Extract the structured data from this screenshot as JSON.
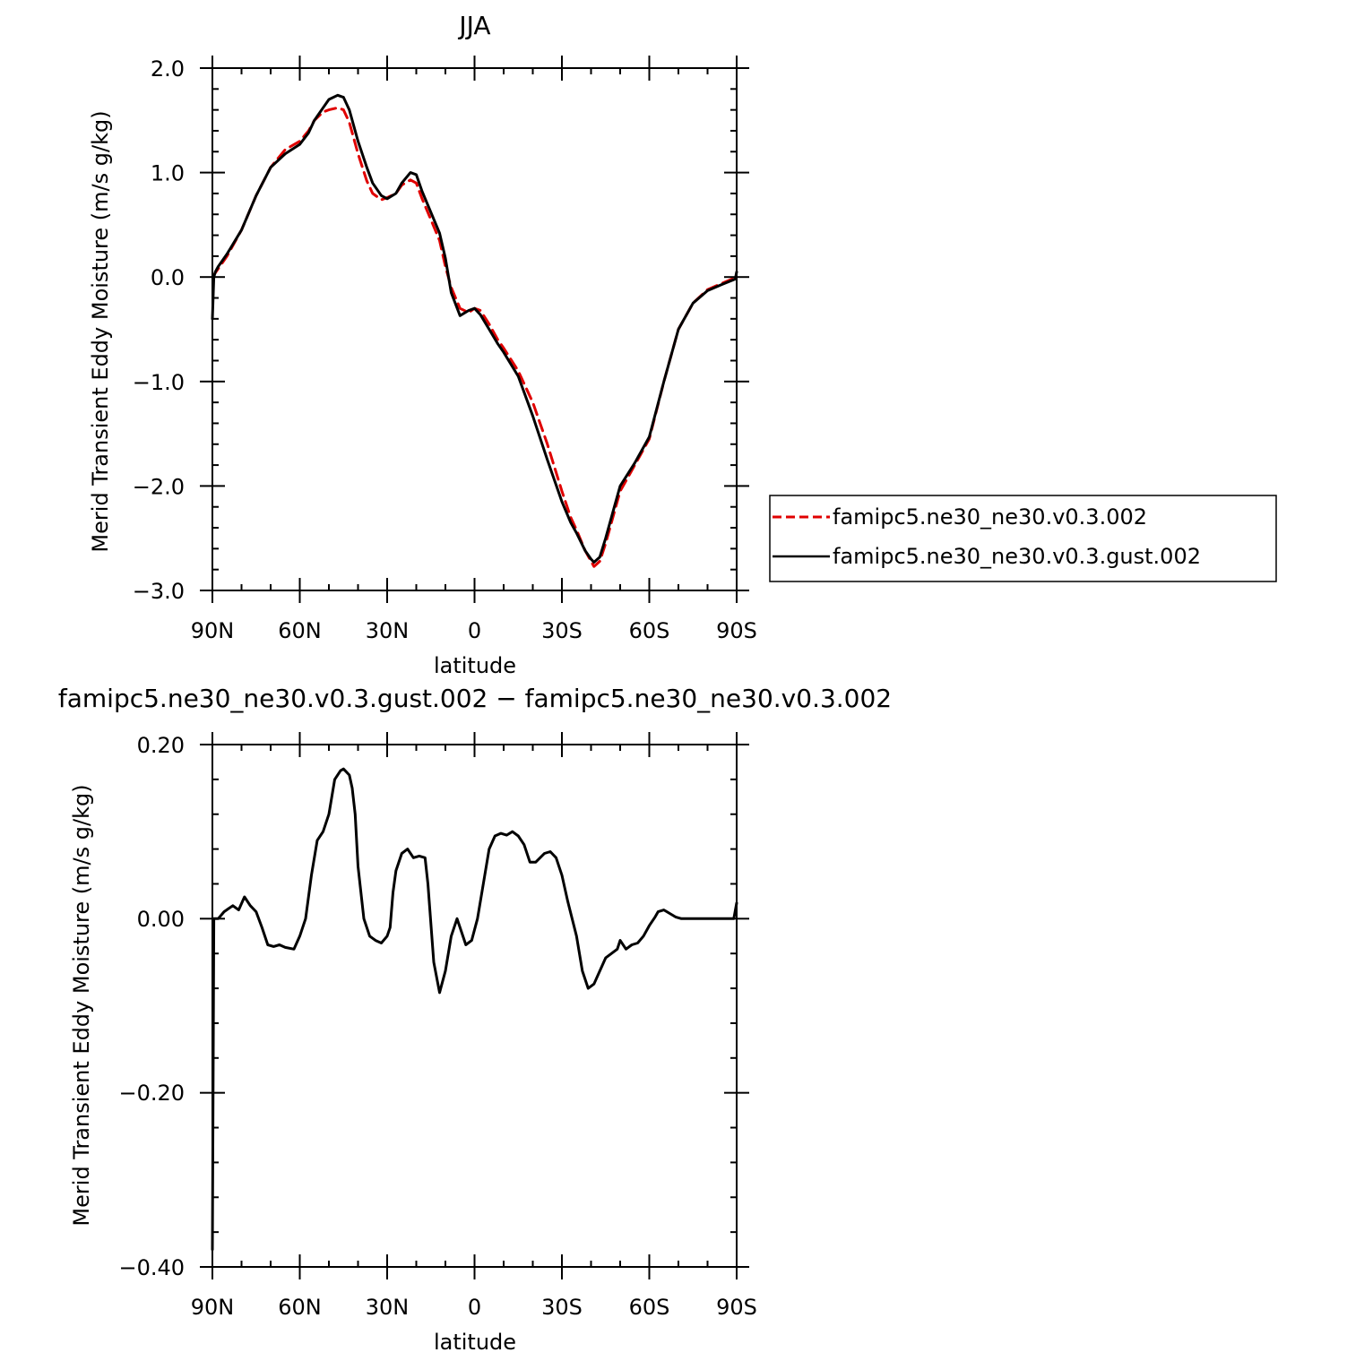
{
  "chart_data": [
    {
      "type": "line",
      "title": "JJA",
      "xlabel": "latitude",
      "ylabel": "Merid Transient Eddy Moisture (m/s g/kg)",
      "xlim": [
        90,
        -90
      ],
      "ylim": [
        -3.0,
        2.0
      ],
      "x_ticks": [
        90,
        60,
        30,
        0,
        -30,
        -60,
        -90
      ],
      "x_tick_labels": [
        "90N",
        "60N",
        "30N",
        "0",
        "30S",
        "60S",
        "90S"
      ],
      "y_ticks": [
        2.0,
        1.0,
        0.0,
        -1.0,
        -2.0,
        -3.0
      ],
      "y_tick_labels": [
        "2.0",
        "1.0",
        "0.0",
        "−1.0",
        "−2.0",
        "−3.0"
      ],
      "grid": false,
      "legend_position": "right",
      "series": [
        {
          "name": "famipc5.ne30_ne30.v0.3.002",
          "color": "#e00000",
          "dash": "dashed",
          "x": [
            90,
            88,
            85,
            80,
            75,
            70,
            65,
            60,
            57,
            55,
            52,
            50,
            47,
            45,
            43,
            40,
            37,
            35,
            32,
            30,
            27,
            25,
            22,
            20,
            18,
            15,
            12,
            10,
            8,
            5,
            2,
            0,
            -2,
            -5,
            -8,
            -10,
            -15,
            -20,
            -25,
            -30,
            -33,
            -35,
            -38,
            -40,
            -41,
            -43,
            -45,
            -48,
            -50,
            -55,
            -60,
            -65,
            -70,
            -75,
            -80,
            -85,
            -90
          ],
          "y": [
            0.0,
            0.08,
            0.2,
            0.45,
            0.78,
            1.05,
            1.22,
            1.3,
            1.4,
            1.5,
            1.58,
            1.6,
            1.62,
            1.6,
            1.48,
            1.18,
            0.92,
            0.8,
            0.74,
            0.76,
            0.8,
            0.88,
            0.93,
            0.9,
            0.75,
            0.55,
            0.35,
            0.1,
            -0.1,
            -0.3,
            -0.34,
            -0.3,
            -0.32,
            -0.45,
            -0.6,
            -0.68,
            -0.9,
            -1.2,
            -1.6,
            -2.05,
            -2.3,
            -2.42,
            -2.62,
            -2.72,
            -2.77,
            -2.72,
            -2.55,
            -2.25,
            -2.05,
            -1.8,
            -1.55,
            -1.0,
            -0.5,
            -0.25,
            -0.12,
            -0.06,
            0.0
          ]
        },
        {
          "name": "famipc5.ne30_ne30.v0.3.gust.002",
          "color": "#000000",
          "dash": "solid",
          "x": [
            90,
            89.5,
            89,
            88,
            85,
            80,
            75,
            70,
            65,
            60,
            57,
            55,
            52,
            50,
            47,
            45,
            43,
            40,
            37,
            35,
            32,
            30,
            27,
            25,
            22,
            20,
            18,
            15,
            12,
            10,
            8,
            5,
            2,
            0,
            -2,
            -5,
            -8,
            -10,
            -15,
            -20,
            -25,
            -30,
            -33,
            -35,
            -38,
            -40,
            -41,
            -43,
            -45,
            -48,
            -50,
            -55,
            -60,
            -65,
            -70,
            -75,
            -80,
            -85,
            -89.5,
            -90
          ],
          "y": [
            -0.4,
            0.0,
            0.05,
            0.1,
            0.22,
            0.45,
            0.78,
            1.05,
            1.18,
            1.27,
            1.38,
            1.5,
            1.62,
            1.7,
            1.74,
            1.72,
            1.6,
            1.3,
            1.05,
            0.9,
            0.78,
            0.75,
            0.8,
            0.9,
            1.0,
            0.98,
            0.82,
            0.62,
            0.42,
            0.18,
            -0.15,
            -0.37,
            -0.32,
            -0.3,
            -0.36,
            -0.5,
            -0.64,
            -0.72,
            -0.95,
            -1.33,
            -1.75,
            -2.15,
            -2.35,
            -2.45,
            -2.62,
            -2.7,
            -2.73,
            -2.68,
            -2.5,
            -2.2,
            -2.0,
            -1.78,
            -1.53,
            -1.0,
            -0.5,
            -0.25,
            -0.13,
            -0.07,
            -0.02,
            0.05
          ]
        }
      ]
    },
    {
      "type": "line",
      "title": "famipc5.ne30_ne30.v0.3.gust.002 − famipc5.ne30_ne30.v0.3.002",
      "xlabel": "latitude",
      "ylabel": "Merid Transient Eddy Moisture (m/s g/kg)",
      "xlim": [
        90,
        -90
      ],
      "ylim": [
        -0.4,
        0.2
      ],
      "x_ticks": [
        90,
        60,
        30,
        0,
        -30,
        -60,
        -90
      ],
      "x_tick_labels": [
        "90N",
        "60N",
        "30N",
        "0",
        "30S",
        "60S",
        "90S"
      ],
      "y_ticks": [
        0.2,
        0.0,
        -0.2,
        -0.4
      ],
      "y_tick_labels": [
        "0.20",
        "0.00",
        "−0.20",
        "−0.40"
      ],
      "grid": false,
      "series": [
        {
          "color": "#000000",
          "dash": "solid",
          "x": [
            90,
            89.5,
            89,
            88,
            86,
            83,
            81,
            79,
            77,
            75,
            73,
            71,
            69,
            67,
            65,
            62,
            60,
            58,
            56,
            54,
            52,
            50,
            48,
            46,
            45,
            43,
            42,
            41,
            40,
            38,
            36,
            34,
            32,
            30,
            29,
            28,
            27,
            25,
            23,
            21,
            19,
            17,
            16,
            14,
            12,
            10,
            8,
            6,
            5,
            3,
            1,
            -1,
            -3,
            -5,
            -7,
            -9,
            -11,
            -13,
            -15,
            -17,
            -19,
            -21,
            -24,
            -26,
            -28,
            -30,
            -32,
            -35,
            -37,
            -39,
            -41,
            -43,
            -45,
            -47,
            -49,
            -50,
            -52,
            -54,
            -56,
            -58,
            -60,
            -62,
            -63,
            -65,
            -67,
            -69,
            -71,
            -73,
            -75,
            -77,
            -79,
            -81,
            -83,
            -85,
            -87,
            -89,
            -90
          ],
          "y": [
            -0.38,
            0.0,
            0.0,
            0.0,
            0.008,
            0.015,
            0.01,
            0.025,
            0.015,
            0.008,
            -0.01,
            -0.03,
            -0.032,
            -0.03,
            -0.033,
            -0.035,
            -0.02,
            0.0,
            0.05,
            0.09,
            0.1,
            0.12,
            0.16,
            0.17,
            0.172,
            0.165,
            0.15,
            0.12,
            0.06,
            0.0,
            -0.02,
            -0.025,
            -0.028,
            -0.02,
            -0.01,
            0.03,
            0.055,
            0.075,
            0.08,
            0.07,
            0.072,
            0.07,
            0.04,
            -0.05,
            -0.085,
            -0.06,
            -0.02,
            0.0,
            -0.01,
            -0.03,
            -0.025,
            0.0,
            0.04,
            0.08,
            0.095,
            0.098,
            0.096,
            0.1,
            0.095,
            0.085,
            0.065,
            0.065,
            0.075,
            0.077,
            0.07,
            0.05,
            0.02,
            -0.02,
            -0.06,
            -0.08,
            -0.075,
            -0.06,
            -0.045,
            -0.04,
            -0.035,
            -0.025,
            -0.035,
            -0.03,
            -0.028,
            -0.02,
            -0.008,
            0.002,
            0.008,
            0.01,
            0.006,
            0.002,
            0.0,
            0.0,
            0.0,
            0.0,
            0.0,
            0.0,
            0.0,
            0.0,
            0.0,
            0.0,
            0.018
          ]
        }
      ]
    }
  ]
}
